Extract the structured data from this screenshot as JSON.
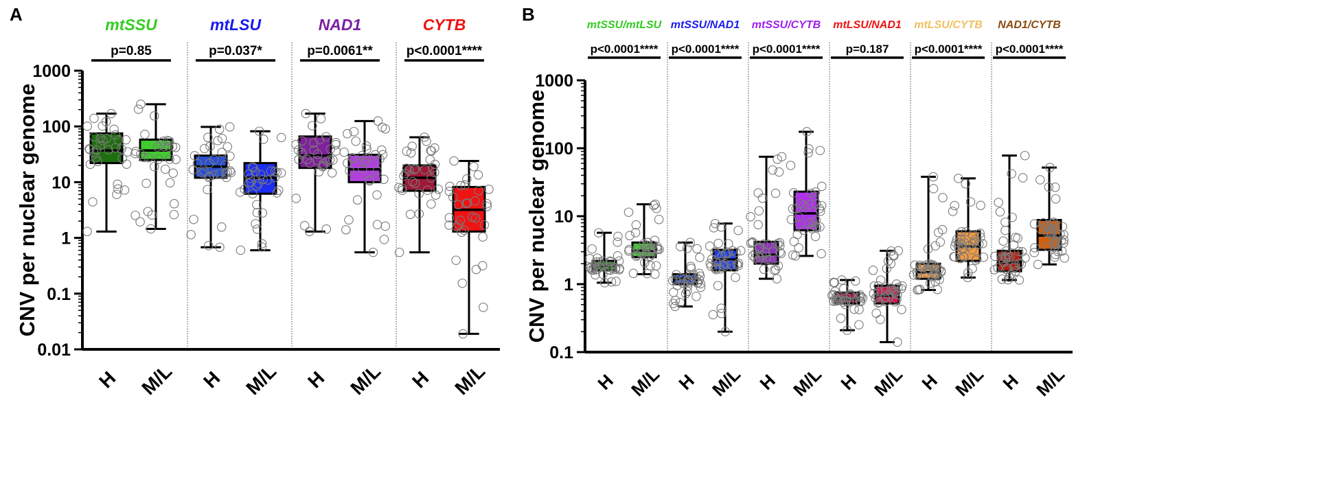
{
  "chart_data": [
    {
      "panel_label": "A",
      "type": "box",
      "scale": "log10",
      "ylim": [
        0.01,
        1000
      ],
      "ylabel": "CNV per nuclear genome",
      "ytick_labels": [
        "0.01",
        "0.1",
        "1",
        "10",
        "100",
        "1000"
      ],
      "ytick_values": [
        0.01,
        0.1,
        1,
        10,
        100,
        1000
      ],
      "group_labels": [
        "H",
        "M/L"
      ],
      "groups": [
        {
          "title": "mtSSU",
          "title_color": "#33cc22",
          "pvalue": "p=0.85",
          "boxes": [
            {
              "category": "H",
              "fill": "#1f6e10",
              "min": 1.3,
              "q1": 22,
              "median": 37,
              "q3": 75,
              "max": 170
            },
            {
              "category": "M/L",
              "fill": "#40cc30",
              "min": 1.45,
              "q1": 25,
              "median": 37,
              "q3": 58,
              "max": 250
            }
          ]
        },
        {
          "title": "mtLSU",
          "title_color": "#1a1aee",
          "pvalue": "p=0.037*",
          "boxes": [
            {
              "category": "H",
              "fill": "#2a4fd0",
              "min": 0.68,
              "q1": 12,
              "median": 19,
              "q3": 30,
              "max": 98
            },
            {
              "category": "M/L",
              "fill": "#1e2ef0",
              "min": 0.6,
              "q1": 6.2,
              "median": 12,
              "q3": 22,
              "max": 82
            }
          ]
        },
        {
          "title": "NAD1",
          "title_color": "#7a1fa0",
          "pvalue": "p=0.0061**",
          "boxes": [
            {
              "category": "H",
              "fill": "#80209a",
              "min": 1.3,
              "q1": 18,
              "median": 30,
              "q3": 66,
              "max": 170
            },
            {
              "category": "M/L",
              "fill": "#b040dc",
              "min": 0.55,
              "q1": 10,
              "median": 17,
              "q3": 31,
              "max": 125
            }
          ]
        },
        {
          "title": "CYTB",
          "title_color": "#ee1111",
          "pvalue": "p<0.0001****",
          "boxes": [
            {
              "category": "H",
              "fill": "#a01838",
              "min": 0.55,
              "q1": 7,
              "median": 12,
              "q3": 20,
              "max": 64
            },
            {
              "category": "M/L",
              "fill": "#ee1414",
              "min": 0.019,
              "q1": 1.3,
              "median": 3.2,
              "q3": 8.2,
              "max": 24
            }
          ]
        }
      ]
    },
    {
      "panel_label": "B",
      "type": "box",
      "scale": "log10",
      "ylim": [
        0.1,
        1000
      ],
      "ylabel": "CNV per nuclear genome",
      "ytick_labels": [
        "0.1",
        "1",
        "10",
        "100",
        "1000"
      ],
      "ytick_values": [
        0.1,
        1,
        10,
        100,
        1000
      ],
      "group_labels": [
        "H",
        "M/L"
      ],
      "groups": [
        {
          "title": "mtSSU/mtLSU",
          "title_color": "#33cc22",
          "pvalue": "p<0.0001****",
          "boxes": [
            {
              "category": "H",
              "fill": "#1f8a1a",
              "min": 1.05,
              "q1": 1.6,
              "median": 1.85,
              "q3": 2.2,
              "max": 5.7
            },
            {
              "category": "M/L",
              "fill": "#40cc30",
              "min": 1.4,
              "q1": 2.5,
              "median": 3.1,
              "q3": 4.1,
              "max": 15
            }
          ]
        },
        {
          "title": "mtSSU/NAD1",
          "title_color": "#1a1aee",
          "pvalue": "p<0.0001****",
          "boxes": [
            {
              "category": "H",
              "fill": "#2040c8",
              "min": 0.47,
              "q1": 1.0,
              "median": 1.2,
              "q3": 1.4,
              "max": 4.1
            },
            {
              "category": "M/L",
              "fill": "#1e3ef0",
              "min": 0.2,
              "q1": 1.6,
              "median": 2.3,
              "q3": 3.2,
              "max": 7.8
            }
          ]
        },
        {
          "title": "mtSSU/CYTB",
          "title_color": "#a020f0",
          "pvalue": "p<0.0001****",
          "boxes": [
            {
              "category": "H",
              "fill": "#9030c0",
              "min": 1.2,
              "q1": 2.0,
              "median": 2.7,
              "q3": 4.2,
              "max": 75
            },
            {
              "category": "M/L",
              "fill": "#b030f0",
              "min": 2.6,
              "q1": 6.2,
              "median": 11,
              "q3": 23,
              "max": 175
            }
          ]
        },
        {
          "title": "mtLSU/NAD1",
          "title_color": "#ee1111",
          "pvalue": "p=0.187",
          "boxes": [
            {
              "category": "H",
              "fill": "#a01848",
              "min": 0.21,
              "q1": 0.52,
              "median": 0.6,
              "q3": 0.75,
              "max": 1.15
            },
            {
              "category": "M/L",
              "fill": "#e0104a",
              "min": 0.14,
              "q1": 0.52,
              "median": 0.68,
              "q3": 0.95,
              "max": 3.1
            }
          ]
        },
        {
          "title": "mtLSU/CYTB",
          "title_color": "#f0c060",
          "pvalue": "p<0.0001****",
          "boxes": [
            {
              "category": "H",
              "fill": "#f0a050",
              "min": 0.82,
              "q1": 1.2,
              "median": 1.5,
              "q3": 2.0,
              "max": 38
            },
            {
              "category": "M/L",
              "fill": "#f59a40",
              "min": 1.25,
              "q1": 2.2,
              "median": 3.6,
              "q3": 6.0,
              "max": 36
            }
          ]
        },
        {
          "title": "NAD1/CYTB",
          "title_color": "#8a4a10",
          "pvalue": "p<0.0001****",
          "boxes": [
            {
              "category": "H",
              "fill": "#b02010",
              "min": 1.15,
              "q1": 1.55,
              "median": 2.1,
              "q3": 3.1,
              "max": 78
            },
            {
              "category": "M/L",
              "fill": "#d06010",
              "min": 1.95,
              "q1": 3.2,
              "median": 5.2,
              "q3": 8.8,
              "max": 52
            }
          ]
        }
      ]
    }
  ]
}
